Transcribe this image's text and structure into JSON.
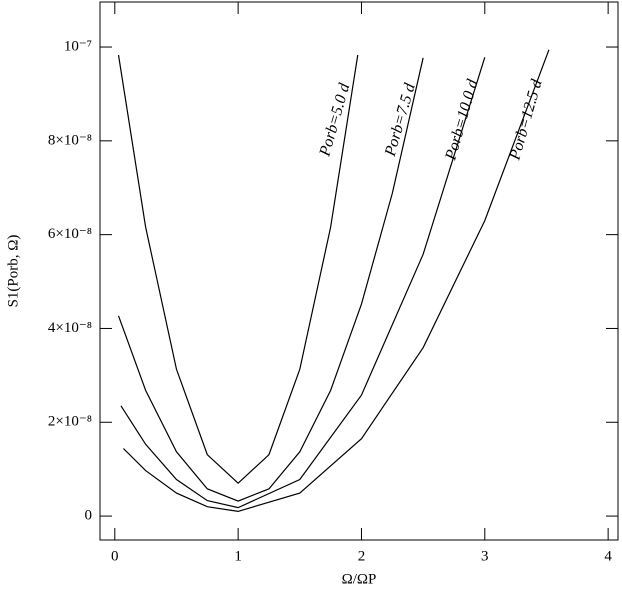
{
  "chart_data": {
    "type": "line",
    "x_label": "Ω/ΩP",
    "y_label": "S1(Porb, Ω)",
    "xlim": [
      -0.12,
      4.08
    ],
    "ylim": [
      -5.1e-09,
      1.096e-07
    ],
    "xticks": [
      0,
      1,
      2,
      3,
      4
    ],
    "yticks": [
      0,
      {
        "value": 2e-08,
        "label": "2×10⁻⁸"
      },
      {
        "value": 4e-08,
        "label": "4×10⁻⁸"
      },
      {
        "value": 6e-08,
        "label": "6×10⁻⁸"
      },
      {
        "value": 8e-08,
        "label": "8×10⁻⁸"
      },
      {
        "value": 1e-07,
        "label": "10⁻⁷"
      }
    ],
    "series": [
      {
        "name": "Porb=5.0 d",
        "color": "#000000",
        "x": [
          0.03,
          0.25,
          0.5,
          0.75,
          1,
          1.25,
          1.5,
          1.75,
          1.97
        ],
        "values": [
          9.83e-08,
          6.16e-08,
          3.13e-08,
          1.31e-08,
          7e-09,
          1.31e-08,
          3.13e-08,
          6.16e-08,
          9.83e-08
        ]
      },
      {
        "name": "Porb=7.5 d",
        "color": "#000000",
        "x": [
          0.03,
          0.25,
          0.5,
          0.75,
          1,
          1.25,
          1.5,
          1.75,
          2,
          2.25,
          2.5
        ],
        "values": [
          4.27e-08,
          2.68e-08,
          1.37e-08,
          5.8e-09,
          3.2e-09,
          5.8e-09,
          1.37e-08,
          2.68e-08,
          4.52e-08,
          6.88e-08,
          9.77e-08
        ]
      },
      {
        "name": "Porb=10.0 d",
        "color": "#000000",
        "x": [
          0.05,
          0.25,
          0.5,
          0.75,
          1,
          1.5,
          2,
          2.5,
          3
        ],
        "values": [
          2.35e-08,
          1.53e-08,
          7.8e-09,
          3.3e-09,
          1.8e-09,
          7.8e-09,
          2.58e-08,
          5.58e-08,
          9.78e-08
        ]
      },
      {
        "name": "Porb=12.5 d",
        "color": "#000000",
        "x": [
          0.07,
          0.25,
          0.5,
          0.75,
          1,
          1.5,
          2,
          2.5,
          3,
          3.52
        ],
        "values": [
          1.44e-08,
          9.7e-09,
          4.9e-09,
          2e-09,
          1e-09,
          4.9e-09,
          1.65e-08,
          3.59e-08,
          6.3e-08,
          9.94e-08
        ]
      }
    ]
  }
}
